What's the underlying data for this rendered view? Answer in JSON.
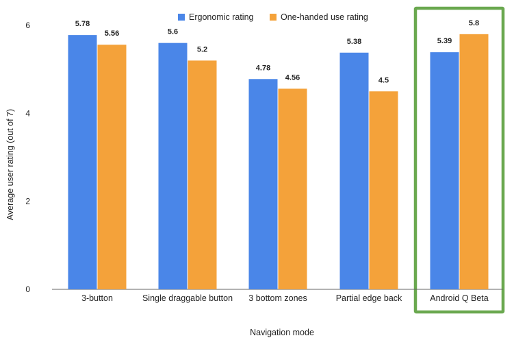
{
  "chart_data": {
    "type": "bar",
    "title": "",
    "xlabel": "Navigation mode",
    "ylabel": "Average user rating (out of 7)",
    "categories": [
      "3-button",
      "Single draggable button",
      "3 bottom zones",
      "Partial edge back",
      "Android Q Beta"
    ],
    "series": [
      {
        "name": "Ergonomic rating",
        "values": [
          5.78,
          5.6,
          4.78,
          5.38,
          5.39
        ],
        "color": "#4a86e8"
      },
      {
        "name": "One-handed use rating",
        "values": [
          5.56,
          5.2,
          4.56,
          4.5,
          5.8
        ],
        "color": "#f4a23a"
      }
    ],
    "data_labels": [
      [
        "5.78",
        "5.6",
        "4.78",
        "5.38",
        "5.39"
      ],
      [
        "5.56",
        "5.2",
        "4.56",
        "4.5",
        "5.8"
      ]
    ],
    "ylim": [
      0,
      6
    ],
    "yticks": [
      0,
      2,
      4,
      6
    ],
    "grid": false,
    "legend": "top-center",
    "highlight": {
      "category": "Android Q Beta",
      "color": "#6aa84f"
    }
  }
}
